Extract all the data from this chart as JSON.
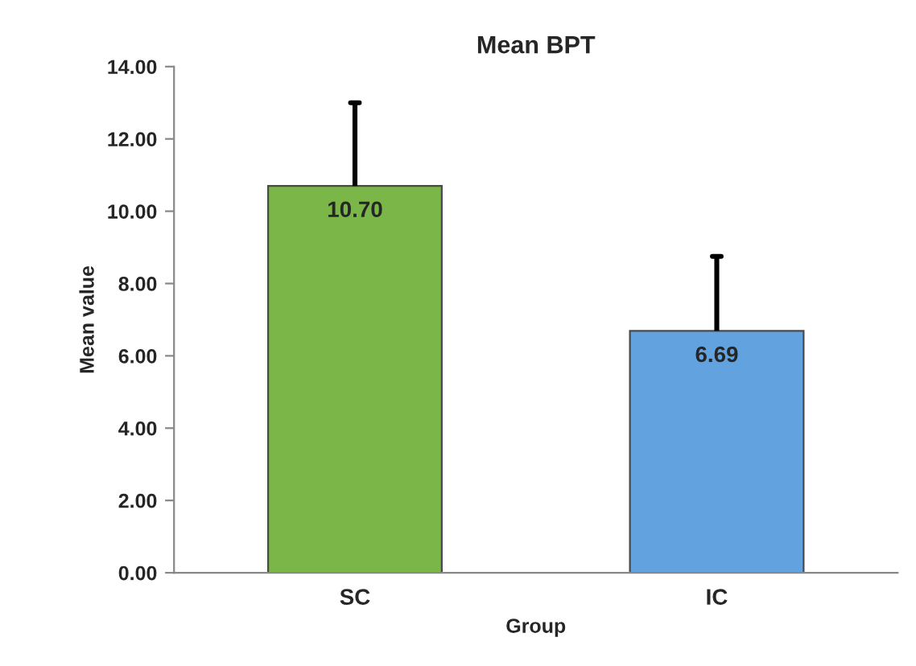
{
  "chart_data": {
    "type": "bar",
    "title": "Mean BPT",
    "xlabel": "Group",
    "ylabel": "Mean value",
    "categories": [
      "SC",
      "IC"
    ],
    "values": [
      10.7,
      6.69
    ],
    "colors": [
      "#7ab648",
      "#62a3df"
    ],
    "errors": [
      [
        10.7,
        13.0
      ],
      [
        6.69,
        8.75
      ]
    ],
    "value_labels": [
      "10.70",
      "6.69"
    ],
    "ylim": [
      0,
      14
    ],
    "yticks": [
      {
        "value": 0,
        "label": "0.00"
      },
      {
        "value": 2,
        "label": "2.00"
      },
      {
        "value": 4,
        "label": "4.00"
      },
      {
        "value": 6,
        "label": "6.00"
      },
      {
        "value": 8,
        "label": "8.00"
      },
      {
        "value": 10,
        "label": "10.00"
      },
      {
        "value": 12,
        "label": "12.00"
      },
      {
        "value": 14,
        "label": "14.00"
      }
    ],
    "grid": false,
    "legend": false
  }
}
